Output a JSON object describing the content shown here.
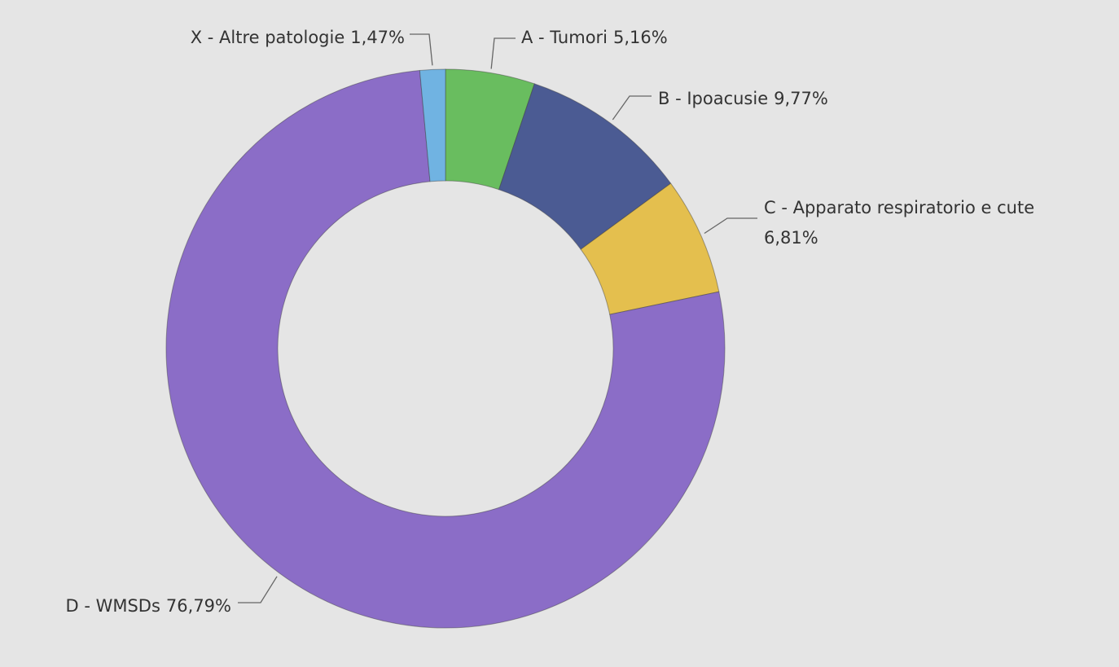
{
  "chart_data": {
    "type": "donut",
    "categories": [
      "A - Tumori",
      "B - Ipoacusie",
      "C - Apparato respiratorio e cute",
      "D - WMSDs",
      "X - Altre patologie"
    ],
    "values": [
      5.16,
      9.77,
      6.81,
      76.79,
      1.47
    ],
    "value_labels": [
      "5,16%",
      "9,77%",
      "6,81%",
      "76,79%",
      "1,47%"
    ],
    "colors": [
      "#69bd5f",
      "#4b5b93",
      "#e4bf4e",
      "#8b6dc7",
      "#70b3e2"
    ]
  }
}
